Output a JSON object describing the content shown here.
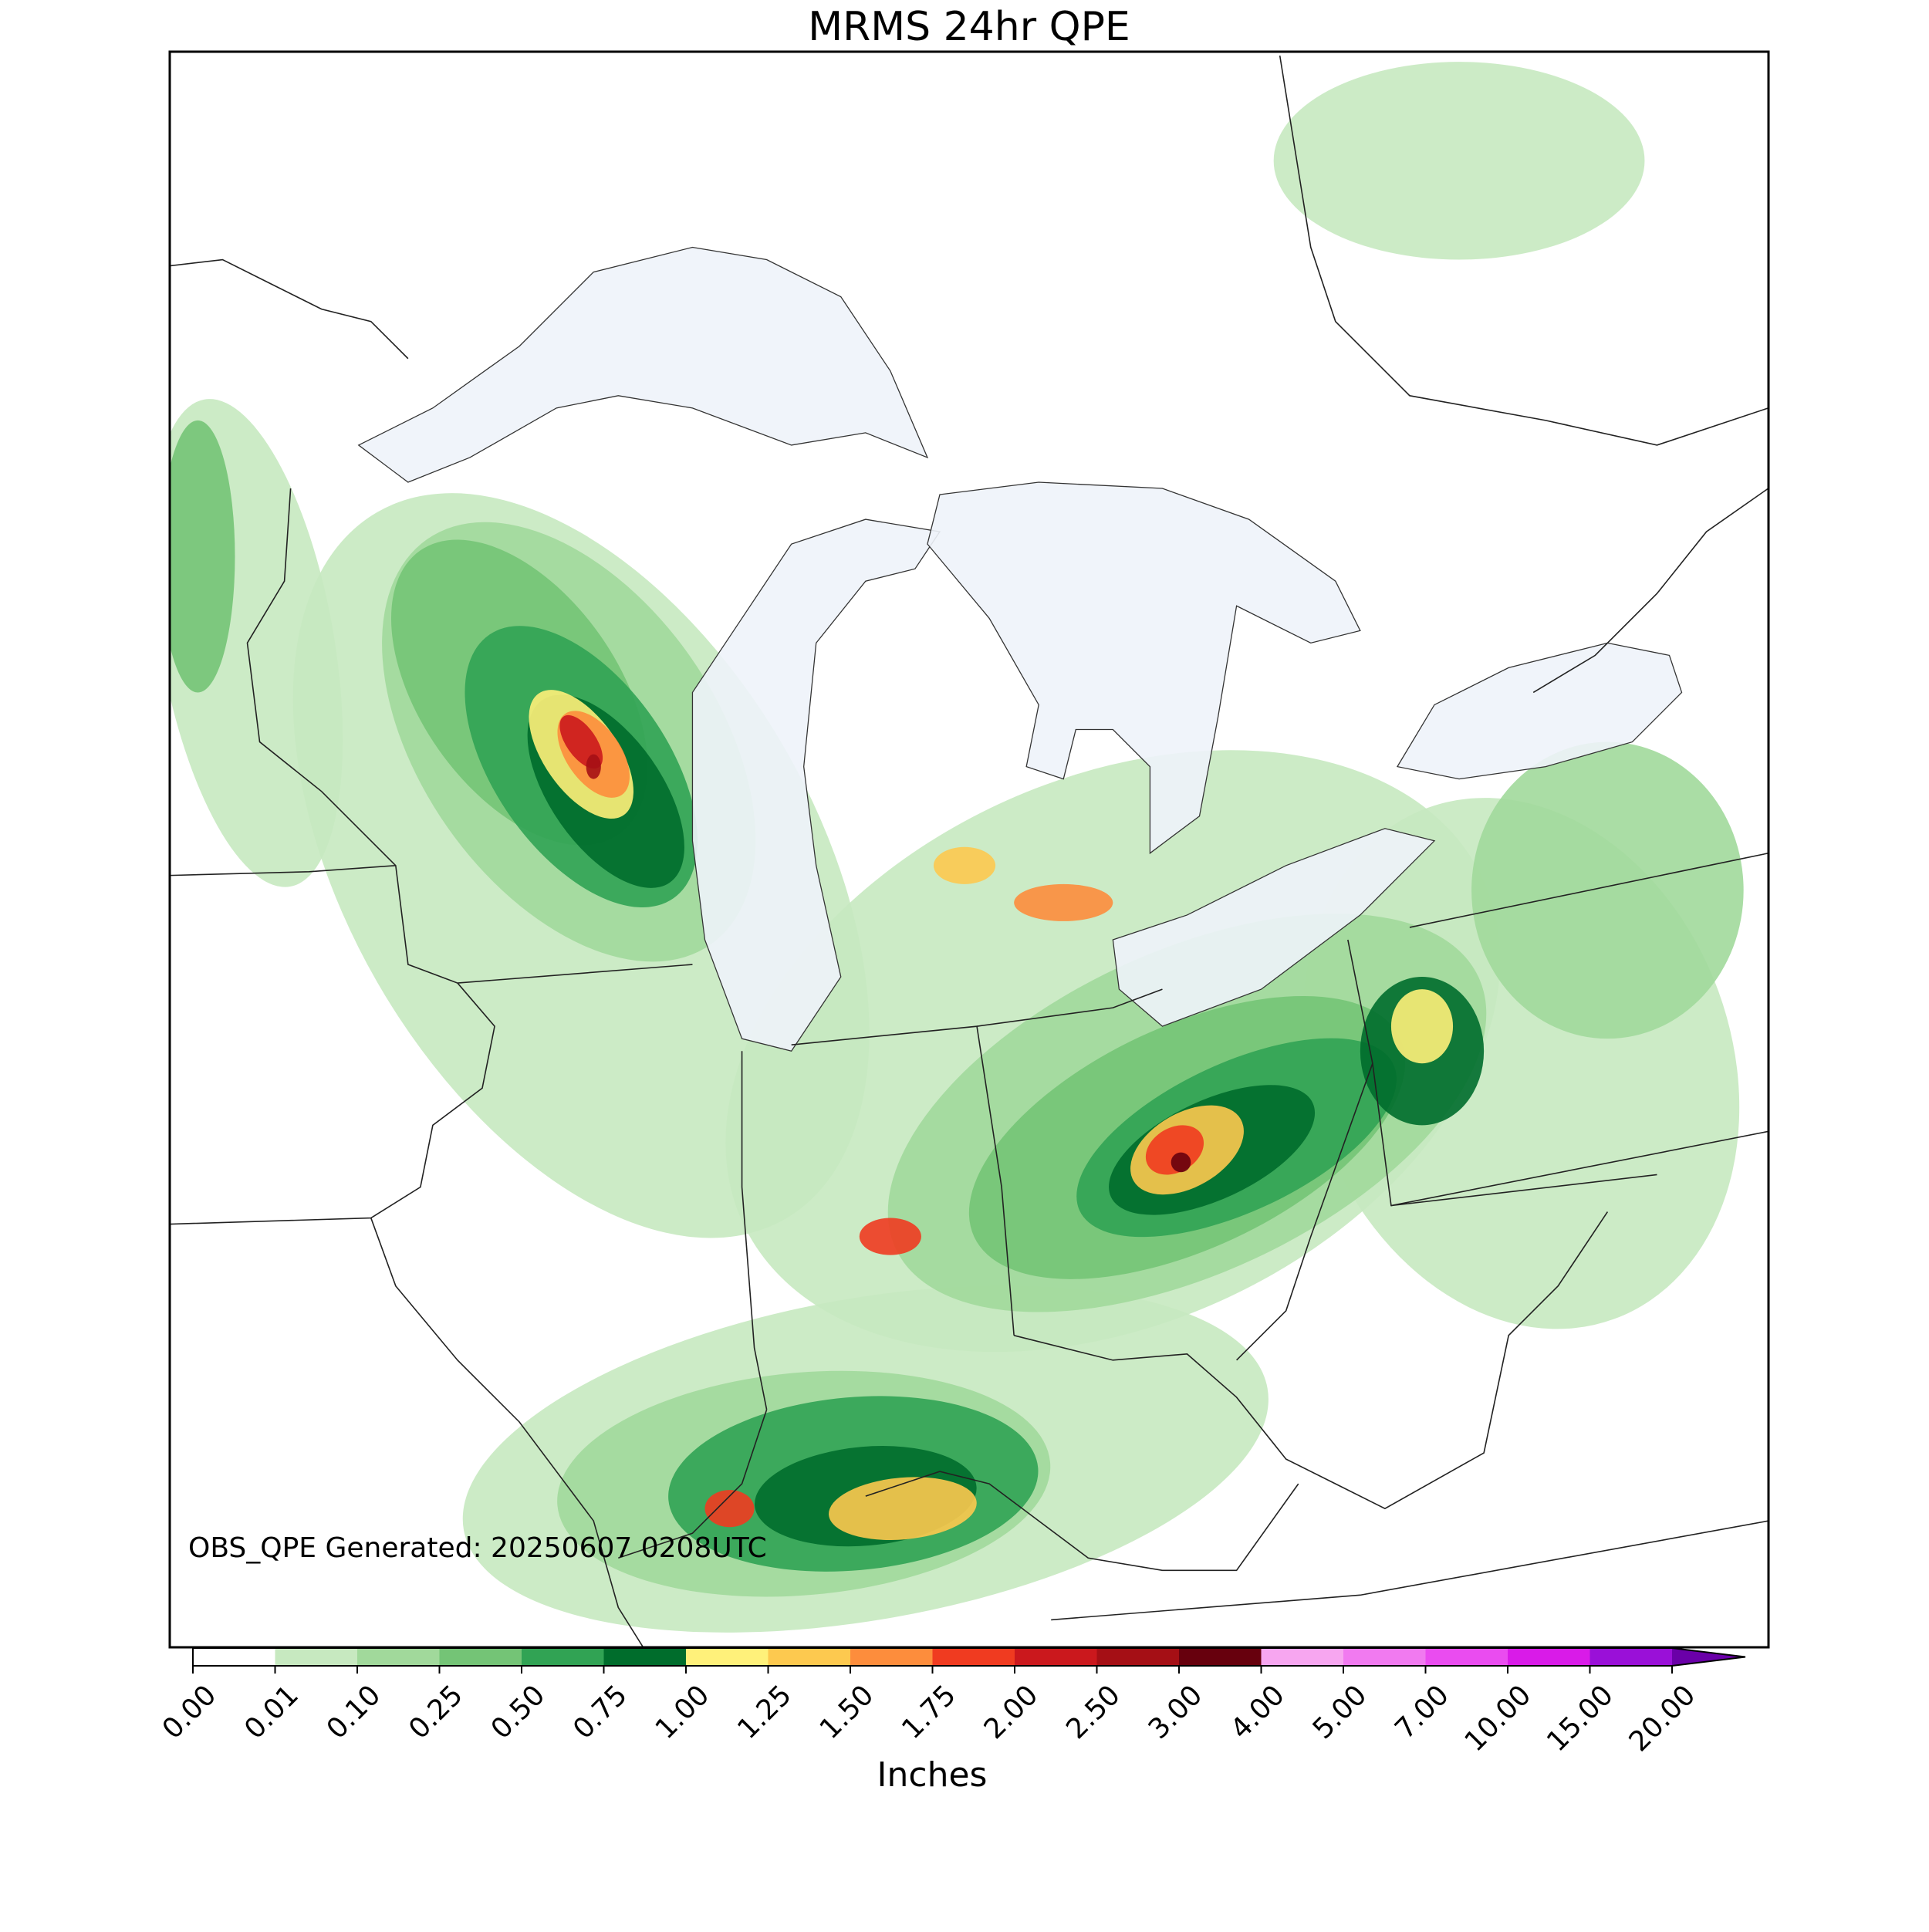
{
  "title": "MRMS 24hr QPE",
  "annotation": "OBS_QPE Generated: 20250607 0208UTC",
  "colorbar": {
    "label": "Inches",
    "ticks": [
      {
        "value": 0,
        "label": "0.00"
      },
      {
        "value": 0.01,
        "label": "0.01"
      },
      {
        "value": 0.1,
        "label": "0.10"
      },
      {
        "value": 0.25,
        "label": "0.25"
      },
      {
        "value": 0.5,
        "label": "0.50"
      },
      {
        "value": 0.75,
        "label": "0.75"
      },
      {
        "value": 1,
        "label": "1.00"
      },
      {
        "value": 1.25,
        "label": "1.25"
      },
      {
        "value": 1.5,
        "label": "1.50"
      },
      {
        "value": 1.75,
        "label": "1.75"
      },
      {
        "value": 2,
        "label": "2.00"
      },
      {
        "value": 2.5,
        "label": "2.50"
      },
      {
        "value": 3,
        "label": "3.00"
      },
      {
        "value": 4,
        "label": "4.00"
      },
      {
        "value": 5,
        "label": "5.00"
      },
      {
        "value": 7,
        "label": "7.00"
      },
      {
        "value": 10,
        "label": "10.00"
      },
      {
        "value": 15,
        "label": "15.00"
      },
      {
        "value": 20,
        "label": "20.00"
      }
    ],
    "colors": [
      "#ffffff",
      "#c7e9c0",
      "#a1d99b",
      "#74c476",
      "#31a354",
      "#006d2c",
      "#fff17a",
      "#fdc94f",
      "#fd8d3c",
      "#f03b20",
      "#cb181d",
      "#a50f15",
      "#67000d",
      "#f7a6f0",
      "#f17af0",
      "#ea4cf0",
      "#d91be8",
      "#9a10d8"
    ],
    "extend_color": "#6a00a8"
  }
}
